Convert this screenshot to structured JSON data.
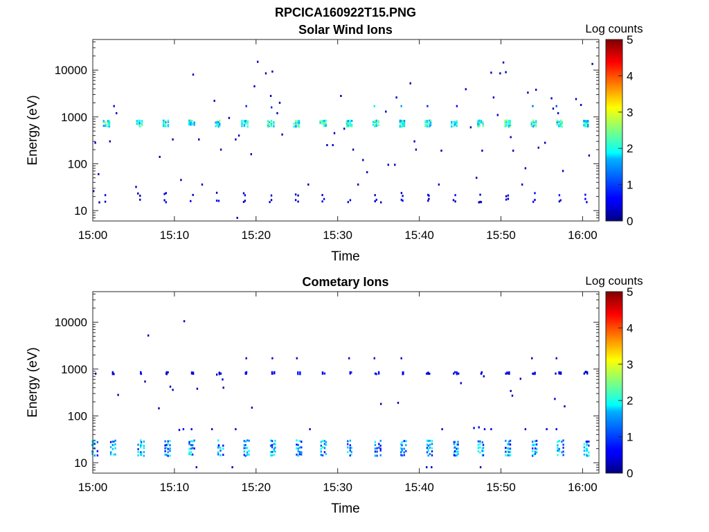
{
  "figure": {
    "suptitle": "RPCICA160922T15.PNG"
  },
  "colors": {
    "background": "#ffffff",
    "axes": "#262626",
    "colormap": "jet"
  },
  "chart_data": [
    {
      "type": "heatmap",
      "title": "Solar Wind Ions",
      "xlabel": "Time",
      "ylabel": "Energy (eV)",
      "xlim": [
        "15:00",
        "16:02"
      ],
      "ylim": [
        6,
        45000
      ],
      "yscale": "log",
      "x_ticks": [
        "15:00",
        "15:10",
        "15:20",
        "15:30",
        "15:40",
        "15:50",
        "16:00"
      ],
      "y_ticks": [
        "10",
        "100",
        "1000",
        "10000"
      ],
      "colorbar": {
        "label": "Log counts",
        "range": [
          0,
          5
        ],
        "ticks": [
          "0",
          "1",
          "2",
          "3",
          "4",
          "5"
        ]
      },
      "grid": false,
      "pulse_times": [
        "15:01.7",
        "15:05.7",
        "15:08.9",
        "15:12.1",
        "15:15.3",
        "15:18.6",
        "15:21.8",
        "15:25.0",
        "15:28.2",
        "15:31.4",
        "15:34.7",
        "15:37.9",
        "15:41.1",
        "15:44.3",
        "15:47.5",
        "15:50.8",
        "15:54.0",
        "15:57.2",
        "16:00.4"
      ],
      "main_band": {
        "energy_eV": [
          620,
          860
        ],
        "log_counts": [
          1.3,
          2.6
        ]
      },
      "low_energy_band": {
        "energy_eV": [
          15,
          27
        ],
        "log_counts": [
          0.2,
          0.7
        ]
      },
      "scattered_counts": [
        {
          "t": "15:00.3",
          "e": 280,
          "v": 0.3
        },
        {
          "t": "15:00.7",
          "e": 60,
          "v": 0.3
        },
        {
          "t": "15:02.1",
          "e": 300,
          "v": 0.3
        },
        {
          "t": "15:02.6",
          "e": 1700,
          "v": 0.5
        },
        {
          "t": "15:02.9",
          "e": 1200,
          "v": 0.4
        },
        {
          "t": "15:08.2",
          "e": 140,
          "v": 0.3
        },
        {
          "t": "15:09.8",
          "e": 330,
          "v": 0.3
        },
        {
          "t": "15:10.8",
          "e": 45,
          "v": 0.3
        },
        {
          "t": "15:12.3",
          "e": 8000,
          "v": 0.3
        },
        {
          "t": "15:13.0",
          "e": 330,
          "v": 0.3
        },
        {
          "t": "15:13.4",
          "e": 36,
          "v": 0.3
        },
        {
          "t": "15:14.9",
          "e": 2200,
          "v": 0.3
        },
        {
          "t": "15:15.7",
          "e": 200,
          "v": 0.3
        },
        {
          "t": "15:16.7",
          "e": 950,
          "v": 0.3
        },
        {
          "t": "15:17.5",
          "e": 330,
          "v": 0.3
        },
        {
          "t": "15:17.9",
          "e": 400,
          "v": 0.3
        },
        {
          "t": "15:18.8",
          "e": 1700,
          "v": 0.8
        },
        {
          "t": "15:19.4",
          "e": 160,
          "v": 0.3
        },
        {
          "t": "15:19.8",
          "e": 4500,
          "v": 0.3
        },
        {
          "t": "15:20.2",
          "e": 15000,
          "v": 0.3
        },
        {
          "t": "15:21.2",
          "e": 8500,
          "v": 0.3
        },
        {
          "t": "15:22.0",
          "e": 9300,
          "v": 0.3
        },
        {
          "t": "15:21.8",
          "e": 2800,
          "v": 0.3
        },
        {
          "t": "15:21.9",
          "e": 1600,
          "v": 0.8
        },
        {
          "t": "15:22.6",
          "e": 1200,
          "v": 0.3
        },
        {
          "t": "15:22.9",
          "e": 2000,
          "v": 0.3
        },
        {
          "t": "15:23.2",
          "e": 420,
          "v": 0.3
        },
        {
          "t": "15:26.4",
          "e": 36,
          "v": 0.3
        },
        {
          "t": "15:28.7",
          "e": 250,
          "v": 0.3
        },
        {
          "t": "15:29.4",
          "e": 250,
          "v": 0.3
        },
        {
          "t": "15:29.6",
          "e": 450,
          "v": 0.3
        },
        {
          "t": "15:30.4",
          "e": 2800,
          "v": 0.3
        },
        {
          "t": "15:30.8",
          "e": 560,
          "v": 0.3
        },
        {
          "t": "15:31.9",
          "e": 200,
          "v": 0.3
        },
        {
          "t": "15:32.5",
          "e": 36,
          "v": 0.3
        },
        {
          "t": "15:33.1",
          "e": 120,
          "v": 0.3
        },
        {
          "t": "15:33.6",
          "e": 66,
          "v": 0.3
        },
        {
          "t": "15:34.5",
          "e": 1700,
          "v": 1.8
        },
        {
          "t": "15:35.9",
          "e": 1300,
          "v": 0.3
        },
        {
          "t": "15:37.2",
          "e": 2600,
          "v": 0.3
        },
        {
          "t": "15:37.8",
          "e": 1700,
          "v": 1.4
        },
        {
          "t": "15:38.9",
          "e": 5200,
          "v": 0.3
        },
        {
          "t": "15:39.4",
          "e": 300,
          "v": 0.3
        },
        {
          "t": "15:39.6",
          "e": 200,
          "v": 0.3
        },
        {
          "t": "15:41.0",
          "e": 1700,
          "v": 0.8
        },
        {
          "t": "15:42.4",
          "e": 36,
          "v": 0.3
        },
        {
          "t": "15:42.7",
          "e": 190,
          "v": 0.3
        },
        {
          "t": "15:44.6",
          "e": 1700,
          "v": 0.6
        },
        {
          "t": "15:45.7",
          "e": 3900,
          "v": 0.3
        },
        {
          "t": "15:46.3",
          "e": 600,
          "v": 0.3
        },
        {
          "t": "15:47.0",
          "e": 50,
          "v": 0.3
        },
        {
          "t": "15:47.7",
          "e": 190,
          "v": 0.3
        },
        {
          "t": "15:48.8",
          "e": 8800,
          "v": 0.3
        },
        {
          "t": "15:49.1",
          "e": 2600,
          "v": 0.3
        },
        {
          "t": "15:49.6",
          "e": 1100,
          "v": 0.3
        },
        {
          "t": "15:49.9",
          "e": 8500,
          "v": 0.3
        },
        {
          "t": "15:50.3",
          "e": 14500,
          "v": 0.3
        },
        {
          "t": "15:50.6",
          "e": 9000,
          "v": 0.3
        },
        {
          "t": "15:51.2",
          "e": 370,
          "v": 0.3
        },
        {
          "t": "15:51.5",
          "e": 190,
          "v": 0.3
        },
        {
          "t": "15:52.6",
          "e": 36,
          "v": 0.3
        },
        {
          "t": "15:53.0",
          "e": 80,
          "v": 0.3
        },
        {
          "t": "15:53.3",
          "e": 3300,
          "v": 0.3
        },
        {
          "t": "15:53.9",
          "e": 1700,
          "v": 1.2
        },
        {
          "t": "15:54.3",
          "e": 3800,
          "v": 0.3
        },
        {
          "t": "15:54.6",
          "e": 220,
          "v": 0.3
        },
        {
          "t": "15:55.4",
          "e": 280,
          "v": 0.3
        },
        {
          "t": "15:56.2",
          "e": 2500,
          "v": 0.3
        },
        {
          "t": "15:56.4",
          "e": 1500,
          "v": 0.3
        },
        {
          "t": "15:56.8",
          "e": 1700,
          "v": 1.0
        },
        {
          "t": "15:57.0",
          "e": 1200,
          "v": 0.3
        },
        {
          "t": "15:57.6",
          "e": 70,
          "v": 0.3
        },
        {
          "t": "15:59.2",
          "e": 2400,
          "v": 0.3
        },
        {
          "t": "15:59.8",
          "e": 1800,
          "v": 0.3
        },
        {
          "t": "16:00.8",
          "e": 150,
          "v": 0.3
        },
        {
          "t": "16:01.2",
          "e": 13500,
          "v": 0.3
        },
        {
          "t": "15:00.1",
          "e": 26,
          "v": 0.3
        },
        {
          "t": "15:00.8",
          "e": 15,
          "v": 0.2
        },
        {
          "t": "15:17.7",
          "e": 7,
          "v": 0.3
        },
        {
          "t": "15:35.3",
          "e": 15,
          "v": 0.2
        },
        {
          "t": "15:47.3",
          "e": 15,
          "v": 0.2
        },
        {
          "t": "15:36.2",
          "e": 95,
          "v": 0.3
        },
        {
          "t": "15:37.0",
          "e": 95,
          "v": 0.3
        },
        {
          "t": "15:05.3",
          "e": 32,
          "v": 0.3
        }
      ]
    },
    {
      "type": "heatmap",
      "title": "Cometary Ions",
      "xlabel": "Time",
      "ylabel": "Energy (eV)",
      "xlim": [
        "15:00",
        "16:02"
      ],
      "ylim": [
        6,
        45000
      ],
      "yscale": "log",
      "x_ticks": [
        "15:00",
        "15:10",
        "15:20",
        "15:30",
        "15:40",
        "15:50",
        "16:00"
      ],
      "y_ticks": [
        "10",
        "100",
        "1000",
        "10000"
      ],
      "colorbar": {
        "label": "Log counts",
        "range": [
          0,
          5
        ],
        "ticks": [
          "0",
          "1",
          "2",
          "3",
          "4",
          "5"
        ]
      },
      "grid": false,
      "pulse_times": [
        "15:00.2",
        "15:02.5",
        "15:05.9",
        "15:09.1",
        "15:12.2",
        "15:15.6",
        "15:18.8",
        "15:22.1",
        "15:25.3",
        "15:28.3",
        "15:31.6",
        "15:34.9",
        "15:38.0",
        "15:41.2",
        "15:44.5",
        "15:47.6",
        "15:50.9",
        "15:54.1",
        "15:57.3",
        "16:00.5"
      ],
      "main_band": {
        "energy_eV": [
          14,
          32
        ],
        "log_counts": [
          0.6,
          2.1
        ]
      },
      "upper_band": {
        "energy_eV": [
          780,
          880
        ],
        "log_counts": [
          0.3,
          0.8
        ]
      },
      "scattered_counts": [
        {
          "t": "15:02.5",
          "e": 800,
          "v": 0.3
        },
        {
          "t": "15:03.1",
          "e": 280,
          "v": 0.3
        },
        {
          "t": "15:06.4",
          "e": 540,
          "v": 0.3
        },
        {
          "t": "15:06.8",
          "e": 5200,
          "v": 0.3
        },
        {
          "t": "15:08.1",
          "e": 145,
          "v": 0.3
        },
        {
          "t": "15:09.0",
          "e": 800,
          "v": 0.3
        },
        {
          "t": "15:09.5",
          "e": 420,
          "v": 0.3
        },
        {
          "t": "15:09.8",
          "e": 360,
          "v": 0.3
        },
        {
          "t": "15:11.2",
          "e": 10500,
          "v": 0.3
        },
        {
          "t": "15:12.3",
          "e": 800,
          "v": 0.3
        },
        {
          "t": "15:12.8",
          "e": 380,
          "v": 0.3
        },
        {
          "t": "15:15.2",
          "e": 760,
          "v": 0.3
        },
        {
          "t": "15:15.5",
          "e": 820,
          "v": 0.3
        },
        {
          "t": "15:15.9",
          "e": 600,
          "v": 0.3
        },
        {
          "t": "15:16.0",
          "e": 400,
          "v": 0.3
        },
        {
          "t": "15:18.8",
          "e": 1700,
          "v": 0.4
        },
        {
          "t": "15:18.8",
          "e": 800,
          "v": 0.6
        },
        {
          "t": "15:19.5",
          "e": 150,
          "v": 0.3
        },
        {
          "t": "15:22.0",
          "e": 1700,
          "v": 0.4
        },
        {
          "t": "15:22.0",
          "e": 800,
          "v": 0.4
        },
        {
          "t": "15:25.0",
          "e": 1700,
          "v": 0.4
        },
        {
          "t": "15:31.4",
          "e": 1700,
          "v": 0.4
        },
        {
          "t": "15:34.5",
          "e": 1700,
          "v": 0.4
        },
        {
          "t": "15:34.6",
          "e": 800,
          "v": 0.4
        },
        {
          "t": "15:35.3",
          "e": 180,
          "v": 0.3
        },
        {
          "t": "15:37.4",
          "e": 190,
          "v": 0.3
        },
        {
          "t": "15:37.8",
          "e": 1700,
          "v": 0.4
        },
        {
          "t": "15:40.9",
          "e": 800,
          "v": 0.5
        },
        {
          "t": "15:44.2",
          "e": 800,
          "v": 0.4
        },
        {
          "t": "15:44.8",
          "e": 800,
          "v": 0.4
        },
        {
          "t": "15:45.1",
          "e": 500,
          "v": 0.3
        },
        {
          "t": "15:47.6",
          "e": 800,
          "v": 0.5
        },
        {
          "t": "15:47.9",
          "e": 700,
          "v": 0.3
        },
        {
          "t": "15:50.6",
          "e": 800,
          "v": 0.5
        },
        {
          "t": "15:51.0",
          "e": 800,
          "v": 0.4
        },
        {
          "t": "15:51.2",
          "e": 340,
          "v": 0.3
        },
        {
          "t": "15:51.4",
          "e": 270,
          "v": 0.3
        },
        {
          "t": "15:52.4",
          "e": 620,
          "v": 0.3
        },
        {
          "t": "15:53.8",
          "e": 1700,
          "v": 0.4
        },
        {
          "t": "15:53.9",
          "e": 800,
          "v": 0.4
        },
        {
          "t": "15:56.8",
          "e": 1700,
          "v": 0.4
        },
        {
          "t": "15:56.7",
          "e": 800,
          "v": 0.4
        },
        {
          "t": "15:56.6",
          "e": 230,
          "v": 0.3
        },
        {
          "t": "15:57.3",
          "e": 800,
          "v": 0.4
        },
        {
          "t": "15:57.8",
          "e": 160,
          "v": 0.3
        },
        {
          "t": "16:00.2",
          "e": 800,
          "v": 0.4
        },
        {
          "t": "16:00.4",
          "e": 870,
          "v": 0.3
        },
        {
          "t": "15:10.6",
          "e": 50,
          "v": 0.5
        },
        {
          "t": "15:11.1",
          "e": 52,
          "v": 0.6
        },
        {
          "t": "15:12.1",
          "e": 52,
          "v": 0.5
        },
        {
          "t": "15:14.6",
          "e": 52,
          "v": 0.4
        },
        {
          "t": "15:17.5",
          "e": 52,
          "v": 0.4
        },
        {
          "t": "15:26.6",
          "e": 52,
          "v": 0.4
        },
        {
          "t": "15:42.8",
          "e": 52,
          "v": 0.4
        },
        {
          "t": "15:46.7",
          "e": 55,
          "v": 0.5
        },
        {
          "t": "15:47.3",
          "e": 57,
          "v": 0.5
        },
        {
          "t": "15:48.0",
          "e": 52,
          "v": 0.4
        },
        {
          "t": "15:48.8",
          "e": 52,
          "v": 0.4
        },
        {
          "t": "15:53.0",
          "e": 52,
          "v": 0.4
        },
        {
          "t": "15:55.6",
          "e": 52,
          "v": 0.4
        },
        {
          "t": "15:56.8",
          "e": 52,
          "v": 0.4
        },
        {
          "t": "15:12.7",
          "e": 8,
          "v": 0.3
        },
        {
          "t": "15:17.1",
          "e": 8,
          "v": 0.3
        },
        {
          "t": "15:40.9",
          "e": 8,
          "v": 0.3
        },
        {
          "t": "15:41.5",
          "e": 8,
          "v": 0.3
        },
        {
          "t": "15:47.5",
          "e": 8,
          "v": 0.3
        }
      ]
    }
  ]
}
